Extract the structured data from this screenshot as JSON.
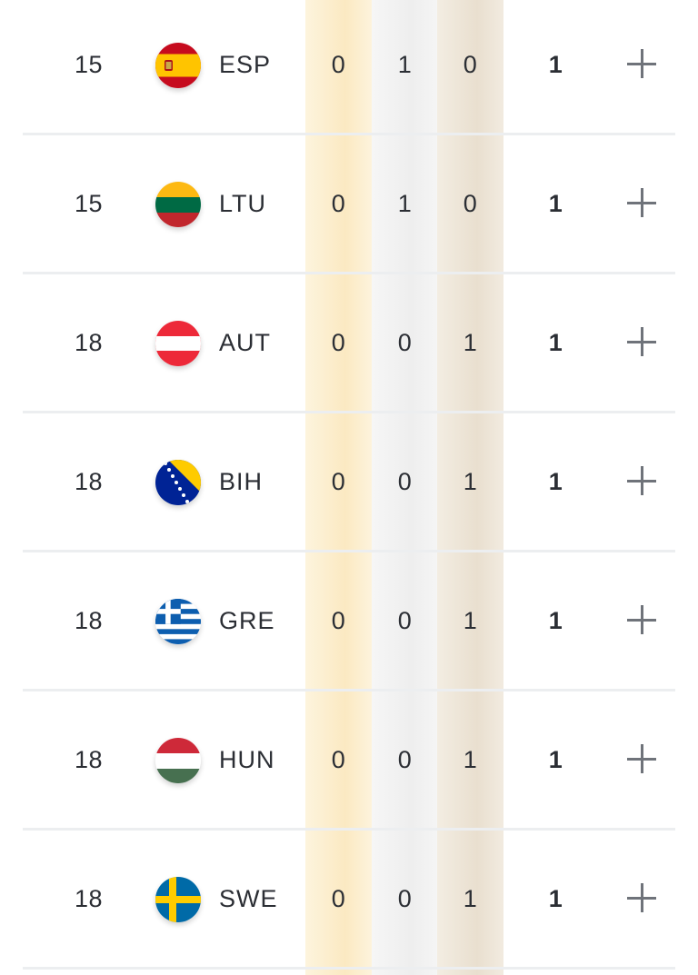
{
  "rows": [
    {
      "rank": "15",
      "flag": "spain-flag-icon",
      "code": "ESP",
      "gold": "0",
      "silver": "1",
      "bronze": "0",
      "total": "1"
    },
    {
      "rank": "15",
      "flag": "lithuania-flag-icon",
      "code": "LTU",
      "gold": "0",
      "silver": "1",
      "bronze": "0",
      "total": "1"
    },
    {
      "rank": "18",
      "flag": "austria-flag-icon",
      "code": "AUT",
      "gold": "0",
      "silver": "0",
      "bronze": "1",
      "total": "1"
    },
    {
      "rank": "18",
      "flag": "bosnia-flag-icon",
      "code": "BIH",
      "gold": "0",
      "silver": "0",
      "bronze": "1",
      "total": "1"
    },
    {
      "rank": "18",
      "flag": "greece-flag-icon",
      "code": "GRE",
      "gold": "0",
      "silver": "0",
      "bronze": "1",
      "total": "1"
    },
    {
      "rank": "18",
      "flag": "hungary-flag-icon",
      "code": "HUN",
      "gold": "0",
      "silver": "0",
      "bronze": "1",
      "total": "1"
    },
    {
      "rank": "18",
      "flag": "sweden-flag-icon",
      "code": "SWE",
      "gold": "0",
      "silver": "0",
      "bronze": "1",
      "total": "1"
    }
  ],
  "colors": {
    "gold_col": "#fbe9c2",
    "silver_col": "#eeeeee",
    "bronze_col": "#e9dfcf",
    "text": "#2b2e34",
    "divider": "#eceef0",
    "plus": "#6f737a"
  },
  "icons": {
    "expand": "plus-icon"
  }
}
